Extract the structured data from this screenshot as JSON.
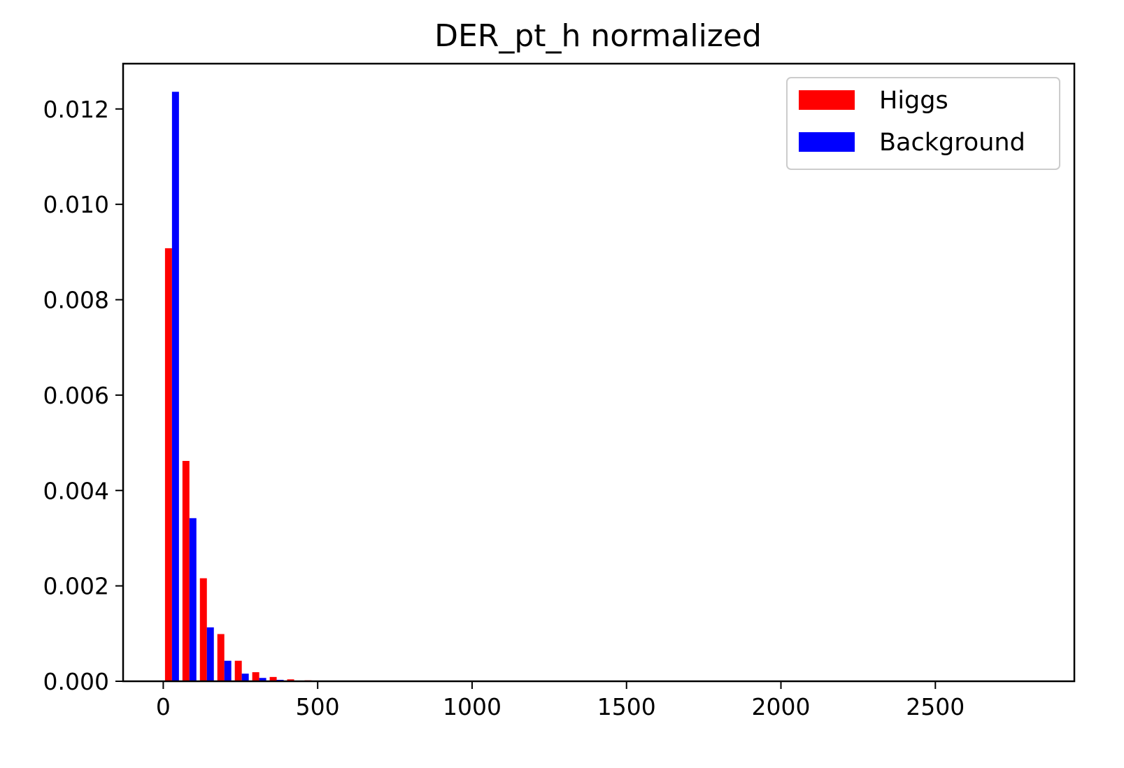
{
  "chart_data": {
    "type": "bar",
    "title": "DER_pt_h normalized",
    "xlabel": "",
    "ylabel": "",
    "xlim": [
      -130,
      2950
    ],
    "ylim": [
      0,
      0.01295
    ],
    "grid": false,
    "legend_position": "top-right",
    "bin_width": 56.5,
    "bin_starts": [
      0,
      56.5,
      113,
      169.5,
      226,
      282.5,
      339,
      395.5,
      452,
      508.5
    ],
    "xticks": [
      0,
      500,
      1000,
      1500,
      2000,
      2500
    ],
    "xtick_labels": [
      "0",
      "500",
      "1000",
      "1500",
      "2000",
      "2500"
    ],
    "yticks": [
      0,
      0.002,
      0.004,
      0.006,
      0.008,
      0.01,
      0.012
    ],
    "ytick_labels": [
      "0.000",
      "0.002",
      "0.004",
      "0.006",
      "0.008",
      "0.010",
      "0.012"
    ],
    "series": [
      {
        "name": "Higgs",
        "color": "#ff0000",
        "values": [
          0.00908,
          0.00462,
          0.00216,
          0.00099,
          0.00043,
          0.00019,
          9e-05,
          4e-05,
          2e-05,
          1e-05
        ]
      },
      {
        "name": "Background",
        "color": "#0000ff",
        "values": [
          0.01236,
          0.00342,
          0.00113,
          0.00043,
          0.00016,
          7e-05,
          3e-05,
          1e-05,
          5e-06,
          2e-06
        ]
      }
    ]
  }
}
